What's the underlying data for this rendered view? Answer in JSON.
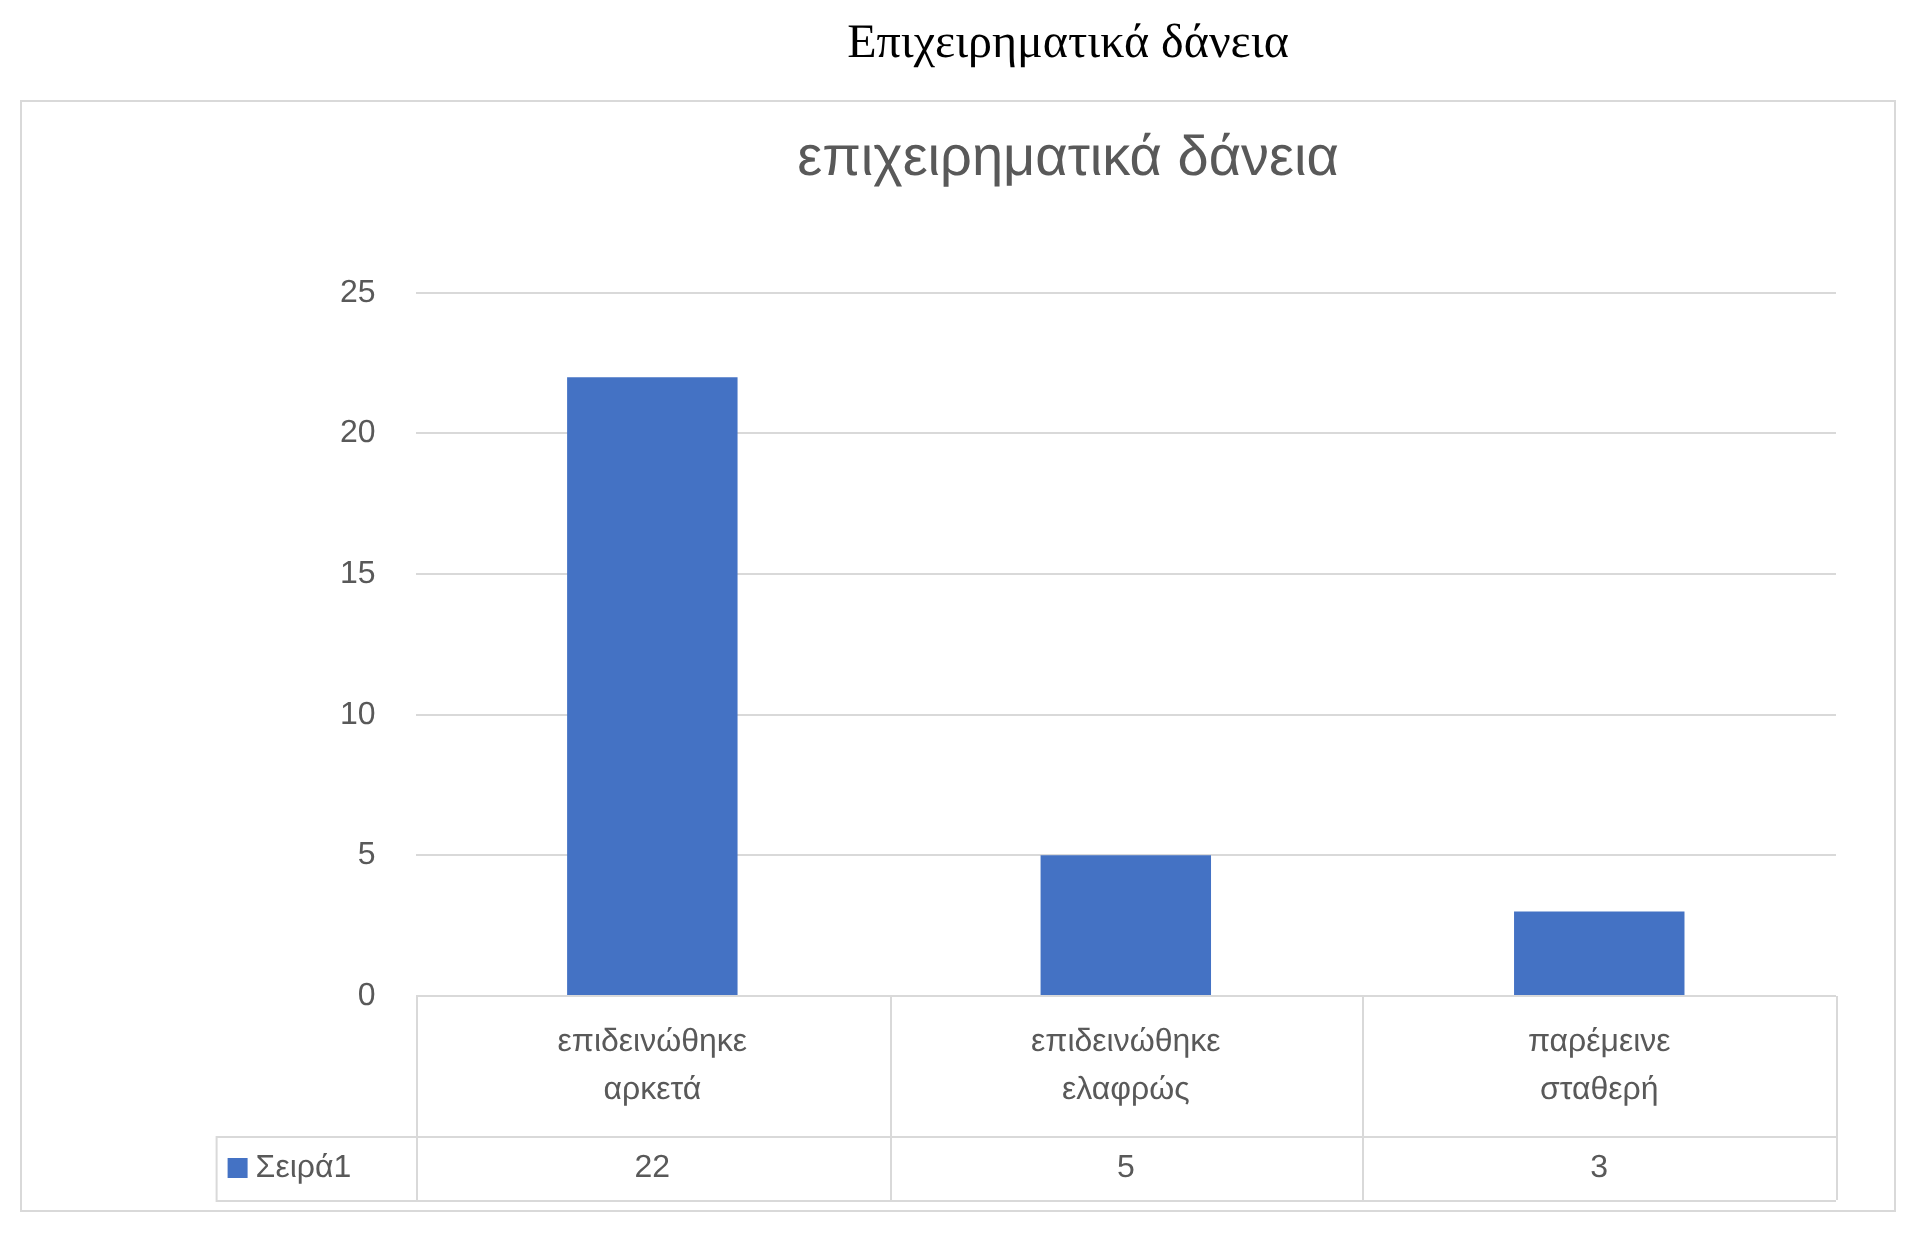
{
  "chart_data": {
    "type": "bar",
    "title": "Επιχειρηματικά δάνεια",
    "subtitle": "επιχειρηματικά δάνεια",
    "categories": [
      "επιδεινώθηκε αρκετά",
      "επιδεινώθηκε ελαφρώς",
      "παρέμεινε σταθερή"
    ],
    "series": [
      {
        "name": "Σειρά1",
        "color": "#4472c4",
        "values": [
          22,
          5,
          3
        ]
      }
    ],
    "ylim": [
      0,
      25
    ],
    "yticks": [
      0,
      5,
      10,
      15,
      20,
      25
    ],
    "grid": "y",
    "legend": "bottom",
    "data_labels": true
  }
}
